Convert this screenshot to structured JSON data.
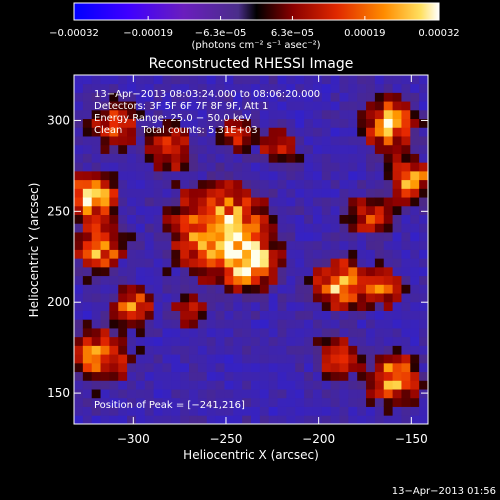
{
  "chart_data": {
    "type": "heatmap",
    "title": "Reconstructed RHESSI Image",
    "xlabel": "Heliocentric X (arcsec)",
    "ylabel": "Heliocentric Y (arcsec)",
    "xlim": [
      -332,
      -141
    ],
    "ylim": [
      133,
      325
    ],
    "xticks": [
      "−300",
      "−250",
      "−200",
      "−150"
    ],
    "xtick_values": [
      -300,
      -250,
      -200,
      -150
    ],
    "yticks": [
      "150",
      "200",
      "250",
      "300"
    ],
    "ytick_values": [
      150,
      200,
      250,
      300
    ],
    "colorbar": {
      "range": [
        -0.00032,
        0.00032
      ],
      "tick_labels": [
        "−0.00032",
        "−0.00019",
        "−6.3e−05",
        "6.3e−05",
        "0.00019",
        "0.00032"
      ],
      "tick_values": [
        -0.00032,
        -0.00019,
        -6.3e-05,
        6.3e-05,
        0.00019,
        0.00032
      ],
      "units_label": "(photons cm⁻² s⁻¹ asec⁻²)"
    },
    "annotations": [
      "13−Apr−2013 08:03:24.000 to 08:06:20.000",
      "Detectors: 3F 5F 6F 7F 8F 9F, Att 1",
      "Energy Range: 25.0 − 50.0 keV",
      "Clean      Total counts: 5.31E+03",
      "Position of Peak = [−241,216]"
    ],
    "peak": [
      -241,
      216
    ],
    "sources": [
      {
        "x": -253,
        "y": 240,
        "amp": 0.95,
        "r": 22
      },
      {
        "x": -237,
        "y": 222,
        "amp": 0.9,
        "r": 12
      },
      {
        "x": -322,
        "y": 258,
        "amp": 0.85,
        "r": 12
      },
      {
        "x": -318,
        "y": 230,
        "amp": 0.8,
        "r": 11
      },
      {
        "x": -310,
        "y": 298,
        "amp": 0.5,
        "r": 12
      },
      {
        "x": -162,
        "y": 298,
        "amp": 0.85,
        "r": 12
      },
      {
        "x": -150,
        "y": 268,
        "amp": 0.8,
        "r": 10
      },
      {
        "x": -172,
        "y": 248,
        "amp": 0.55,
        "r": 11
      },
      {
        "x": -188,
        "y": 210,
        "amp": 0.85,
        "r": 12
      },
      {
        "x": -165,
        "y": 208,
        "amp": 0.6,
        "r": 9
      },
      {
        "x": -160,
        "y": 158,
        "amp": 0.8,
        "r": 12
      },
      {
        "x": -190,
        "y": 170,
        "amp": 0.45,
        "r": 11
      },
      {
        "x": -318,
        "y": 170,
        "amp": 0.75,
        "r": 13
      },
      {
        "x": -300,
        "y": 198,
        "amp": 0.65,
        "r": 10
      },
      {
        "x": -280,
        "y": 285,
        "amp": 0.55,
        "r": 11
      },
      {
        "x": -222,
        "y": 285,
        "amp": 0.45,
        "r": 9
      },
      {
        "x": -270,
        "y": 195,
        "amp": 0.45,
        "r": 8
      },
      {
        "x": -245,
        "y": 292,
        "amp": 0.4,
        "r": 8
      }
    ]
  },
  "timestamp": "13−Apr−2013 01:56"
}
